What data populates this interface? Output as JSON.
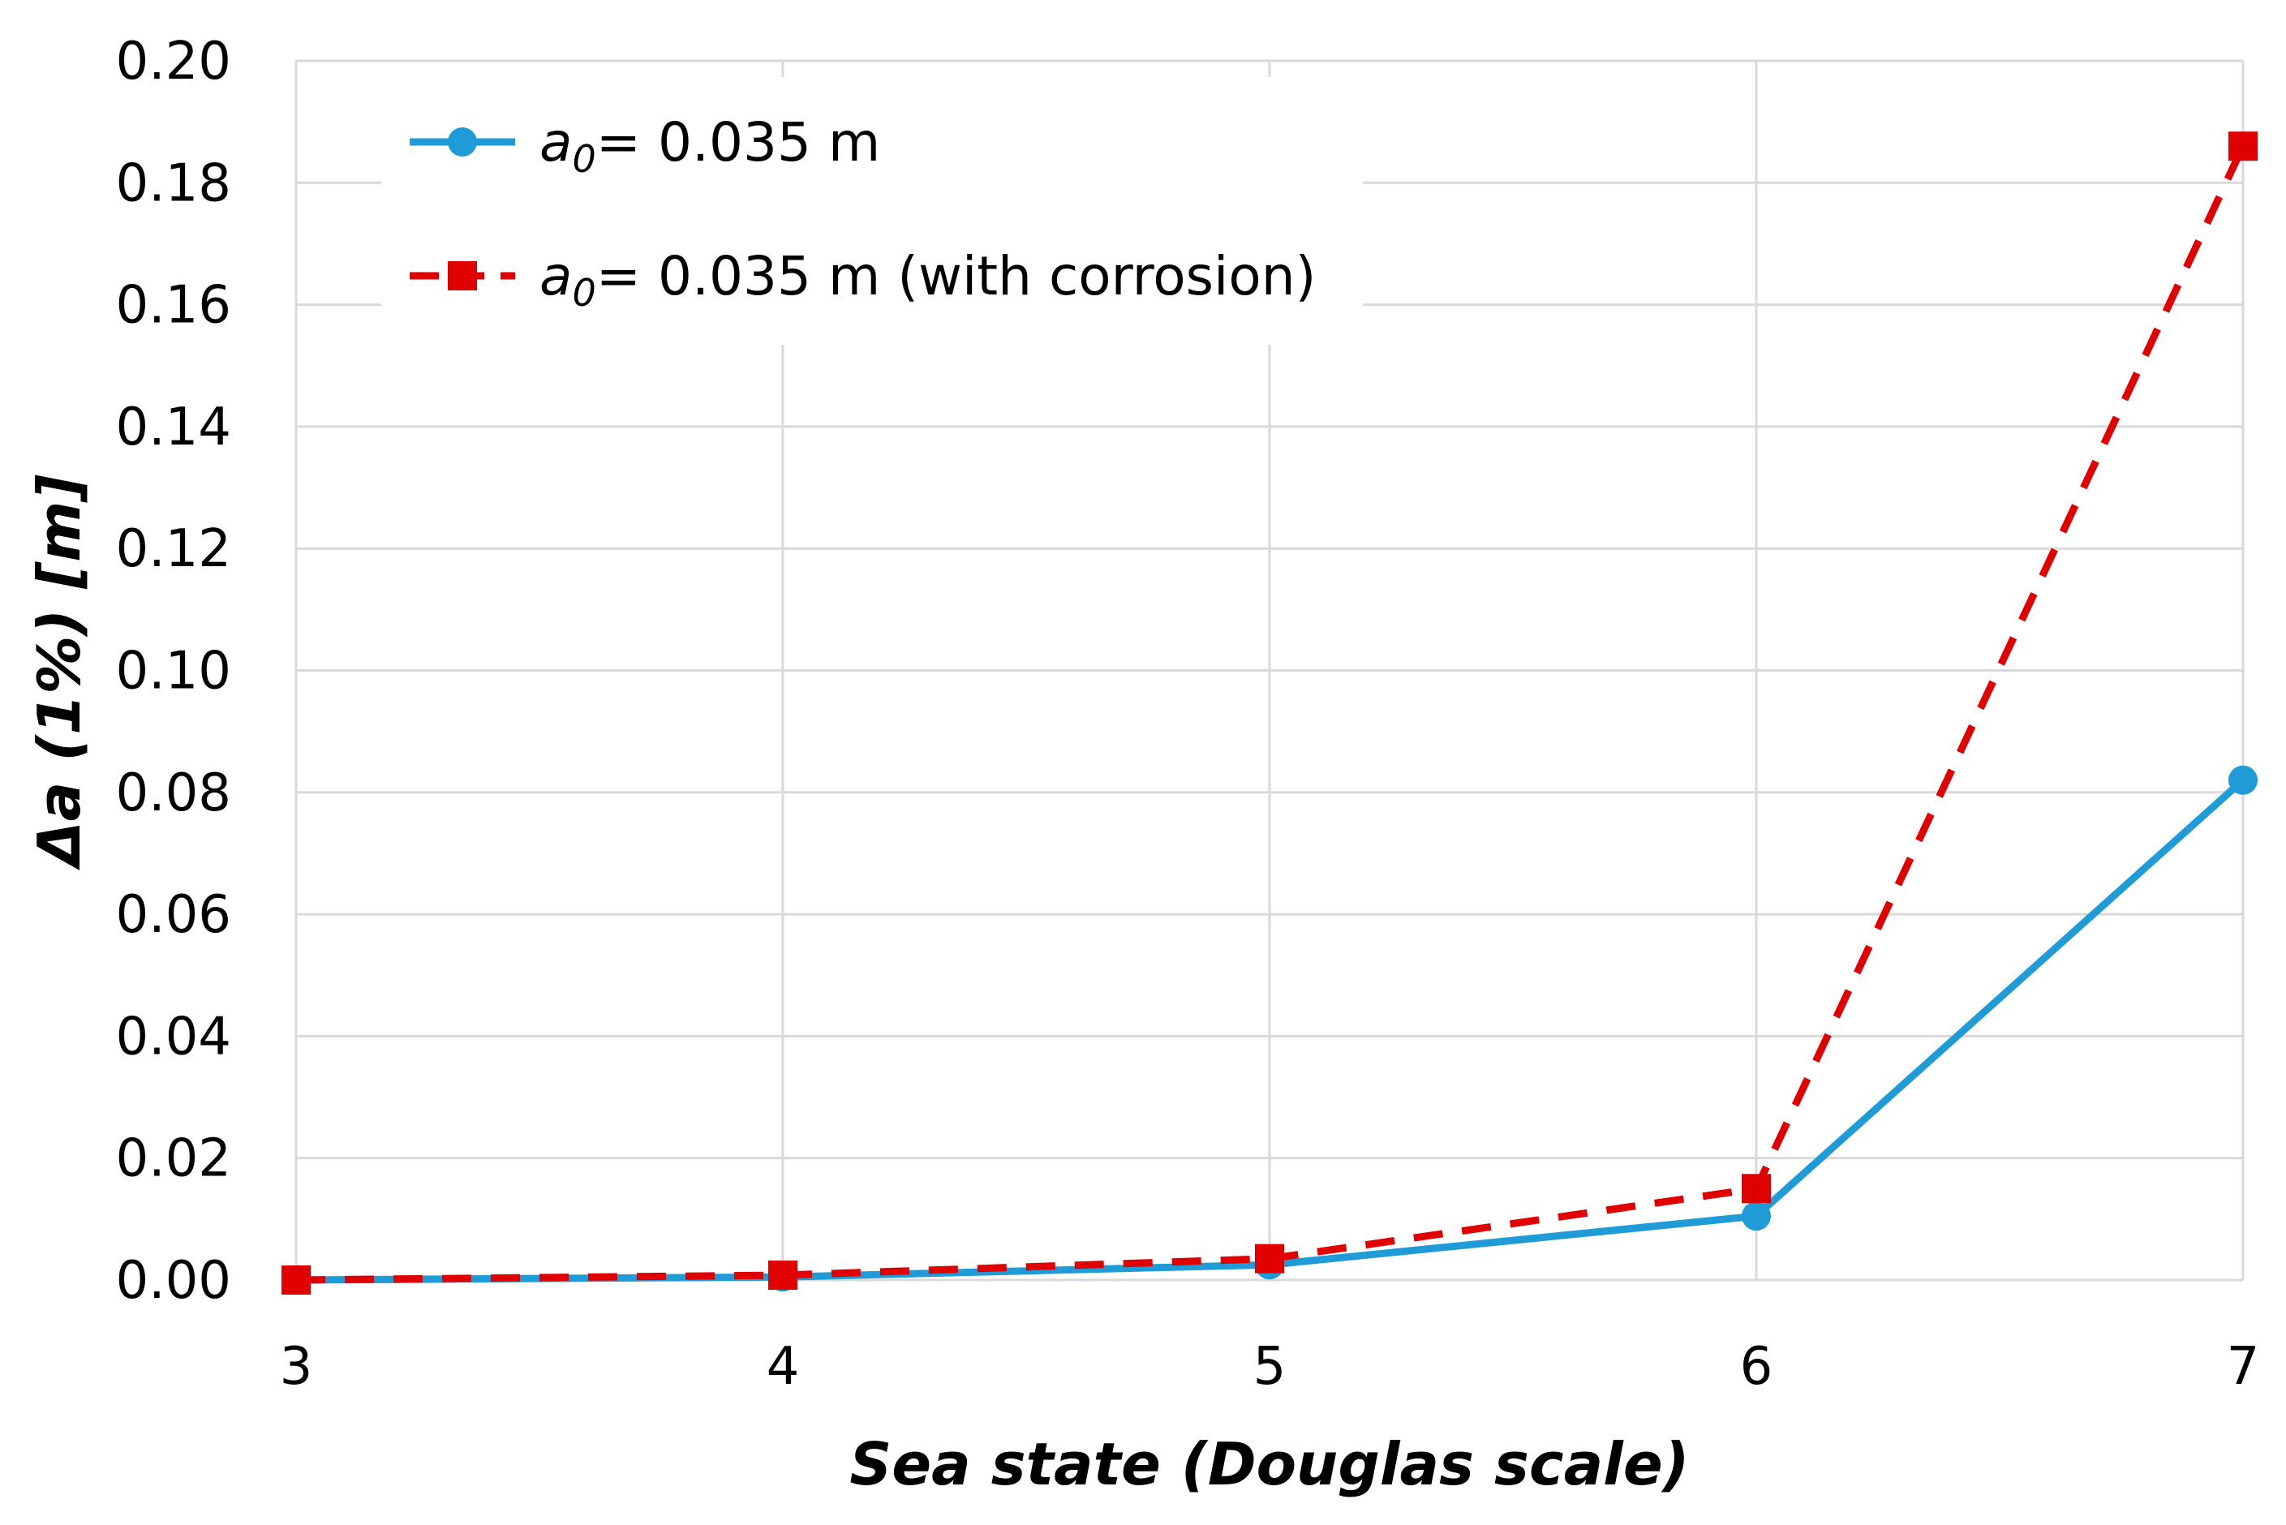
{
  "chart_data": {
    "type": "line",
    "title": "",
    "xlabel": "Sea state (Douglas scale)",
    "ylabel": "Δa (1%) [m]",
    "x": [
      3,
      4,
      5,
      6,
      7
    ],
    "xlim": [
      3,
      7
    ],
    "ylim": [
      0,
      0.2
    ],
    "xticks": [
      "3",
      "4",
      "5",
      "6",
      "7"
    ],
    "yticks": [
      "0.00",
      "0.02",
      "0.04",
      "0.06",
      "0.08",
      "0.10",
      "0.12",
      "0.14",
      "0.16",
      "0.18",
      "0.20"
    ],
    "grid": true,
    "legend_position": "top-left",
    "series": [
      {
        "name": "a0= 0.035 m",
        "label_symbol": "a",
        "label_subscript": "0",
        "label_rest": "= 0.035 m",
        "values": [
          0.0,
          0.0005,
          0.0025,
          0.0105,
          0.082
        ],
        "color": "#1f9bd7",
        "line_style": "solid",
        "marker": "circle"
      },
      {
        "name": "a0= 0.035 m (with corrosion)",
        "label_symbol": "a",
        "label_subscript": "0",
        "label_rest": "= 0.035 m (with corrosion)",
        "values": [
          0.0,
          0.0008,
          0.0035,
          0.015,
          0.186
        ],
        "color": "#e00000",
        "line_style": "dashed",
        "marker": "square"
      }
    ]
  }
}
